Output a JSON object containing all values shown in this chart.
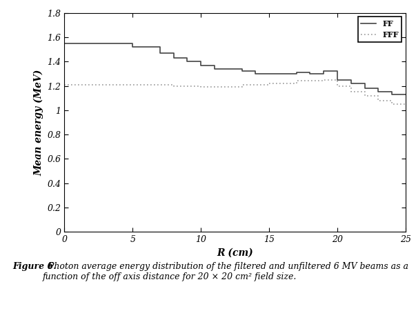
{
  "title": "",
  "xlabel": "R (cm)",
  "ylabel": "Mean energy (MeV)",
  "xlim": [
    0,
    25
  ],
  "ylim": [
    0,
    1.8
  ],
  "xticks": [
    0,
    5,
    10,
    15,
    20,
    25
  ],
  "yticks": [
    0,
    0.2,
    0.4,
    0.6,
    0.8,
    1.0,
    1.2,
    1.4,
    1.6,
    1.8
  ],
  "FF_x": [
    0,
    5,
    5,
    7,
    7,
    8,
    8,
    9,
    9,
    10,
    10,
    11,
    11,
    13,
    13,
    14,
    14,
    15,
    15,
    17,
    17,
    18,
    18,
    19,
    19,
    20,
    20,
    21,
    21,
    22,
    22,
    23,
    23,
    24,
    24,
    25
  ],
  "FF_y": [
    1.55,
    1.55,
    1.52,
    1.52,
    1.47,
    1.47,
    1.43,
    1.43,
    1.4,
    1.4,
    1.37,
    1.37,
    1.34,
    1.34,
    1.32,
    1.32,
    1.3,
    1.3,
    1.3,
    1.3,
    1.31,
    1.31,
    1.3,
    1.3,
    1.32,
    1.32,
    1.25,
    1.25,
    1.22,
    1.22,
    1.18,
    1.18,
    1.15,
    1.15,
    1.13,
    1.13
  ],
  "FF_y_end": 1.13,
  "FFF_x": [
    0,
    8,
    8,
    10,
    10,
    13,
    13,
    15,
    15,
    17,
    17,
    19,
    19,
    20,
    20,
    21,
    21,
    22,
    22,
    23,
    23,
    24,
    24,
    25
  ],
  "FFF_y": [
    1.21,
    1.21,
    1.2,
    1.2,
    1.19,
    1.19,
    1.21,
    1.21,
    1.22,
    1.22,
    1.24,
    1.24,
    1.25,
    1.25,
    1.2,
    1.2,
    1.15,
    1.15,
    1.12,
    1.12,
    1.08,
    1.08,
    1.05,
    1.05
  ],
  "FF_color": "#444444",
  "FFF_color": "#999999",
  "FF_label": "FF",
  "FFF_label": "FFF",
  "FF_linestyle": "solid",
  "FFF_linestyle": "dotted",
  "FF_linewidth": 1.2,
  "FFF_linewidth": 1.2,
  "background_color": "#ffffff",
  "legend_fontsize": 8,
  "axis_fontsize": 10,
  "tick_fontsize": 9,
  "caption_bold": "Figure 6.",
  "caption_normal": "  Photon average energy distribution of the filtered and unfiltered 6 MV beams as a function of the off axis distance for 20 × 20 cm² field size."
}
